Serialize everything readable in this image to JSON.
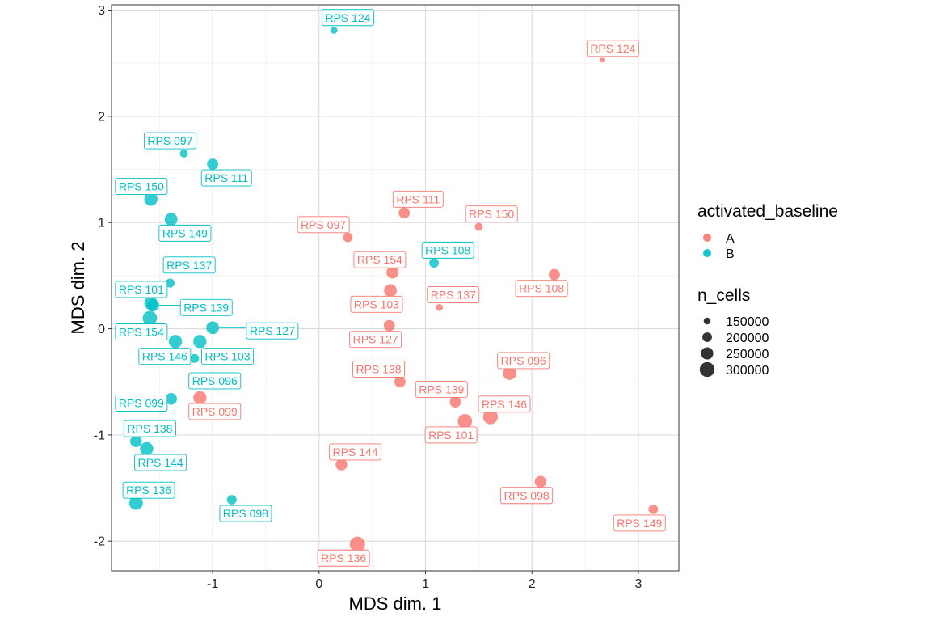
{
  "chart_data": {
    "type": "scatter",
    "title": "",
    "xlabel": "MDS dim. 1",
    "ylabel": "MDS dim. 2",
    "xlim": [
      -1.95,
      3.38
    ],
    "ylim": [
      -2.28,
      3.05
    ],
    "x_ticks": [
      -1,
      0,
      1,
      2,
      3
    ],
    "y_ticks": [
      -2,
      -1,
      0,
      1,
      2,
      3
    ],
    "grid": true,
    "color_legend": {
      "title": "activated_baseline",
      "entries": [
        {
          "label": "A",
          "color": "#F8766D"
        },
        {
          "label": "B",
          "color": "#00BFC4"
        }
      ]
    },
    "size_legend": {
      "title": "n_cells",
      "entries": [
        150000,
        200000,
        250000,
        300000
      ]
    },
    "size_range": [
      110000,
      310000
    ],
    "series": [
      {
        "name": "A",
        "color": "#F8766D",
        "points": [
          {
            "label": "RPS 124",
            "x": 2.66,
            "y": 2.53,
            "n_cells": 110000,
            "lx": 2.76,
            "ly": 2.64
          },
          {
            "label": "RPS 111",
            "x": 0.8,
            "y": 1.09,
            "n_cells": 230000,
            "lx": 0.93,
            "ly": 1.22
          },
          {
            "label": "RPS 097",
            "x": 0.27,
            "y": 0.86,
            "n_cells": 200000,
            "lx": 0.04,
            "ly": 0.98
          },
          {
            "label": "RPS 150",
            "x": 1.5,
            "y": 0.96,
            "n_cells": 170000,
            "lx": 1.62,
            "ly": 1.08
          },
          {
            "label": "RPS 154",
            "x": 0.69,
            "y": 0.53,
            "n_cells": 250000,
            "lx": 0.57,
            "ly": 0.65
          },
          {
            "label": "RPS 108",
            "x": 2.21,
            "y": 0.51,
            "n_cells": 230000,
            "lx": 2.09,
            "ly": 0.38
          },
          {
            "label": "RPS 103",
            "x": 0.67,
            "y": 0.36,
            "n_cells": 260000,
            "lx": 0.54,
            "ly": 0.23
          },
          {
            "label": "RPS 137",
            "x": 1.13,
            "y": 0.2,
            "n_cells": 150000,
            "lx": 1.26,
            "ly": 0.32
          },
          {
            "label": "RPS 127",
            "x": 0.66,
            "y": 0.03,
            "n_cells": 230000,
            "lx": 0.53,
            "ly": -0.1
          },
          {
            "label": "RPS 096",
            "x": 1.79,
            "y": -0.42,
            "n_cells": 270000,
            "lx": 1.92,
            "ly": -0.3
          },
          {
            "label": "RPS 138",
            "x": 0.76,
            "y": -0.5,
            "n_cells": 230000,
            "lx": 0.56,
            "ly": -0.38
          },
          {
            "label": "RPS 139",
            "x": 1.28,
            "y": -0.69,
            "n_cells": 230000,
            "lx": 1.15,
            "ly": -0.57
          },
          {
            "label": "RPS 146",
            "x": 1.61,
            "y": -0.83,
            "n_cells": 300000,
            "lx": 1.74,
            "ly": -0.71
          },
          {
            "label": "RPS 101",
            "x": 1.37,
            "y": -0.87,
            "n_cells": 290000,
            "lx": 1.24,
            "ly": -1.0
          },
          {
            "label": "RPS 099",
            "x": -1.12,
            "y": -0.65,
            "n_cells": 270000,
            "lx": -0.98,
            "ly": -0.78
          },
          {
            "label": "RPS 144",
            "x": 0.21,
            "y": -1.28,
            "n_cells": 240000,
            "lx": 0.34,
            "ly": -1.16
          },
          {
            "label": "RPS 098",
            "x": 2.08,
            "y": -1.44,
            "n_cells": 240000,
            "lx": 1.95,
            "ly": -1.57
          },
          {
            "label": "RPS 149",
            "x": 3.14,
            "y": -1.7,
            "n_cells": 200000,
            "lx": 3.01,
            "ly": -1.83
          },
          {
            "label": "RPS 136",
            "x": 0.36,
            "y": -2.03,
            "n_cells": 310000,
            "lx": 0.23,
            "ly": -2.16
          }
        ]
      },
      {
        "name": "B",
        "color": "#00BFC4",
        "points": [
          {
            "label": "RPS 124",
            "x": 0.14,
            "y": 2.81,
            "n_cells": 150000,
            "lx": 0.27,
            "ly": 2.93
          },
          {
            "label": "RPS 097",
            "x": -1.27,
            "y": 1.65,
            "n_cells": 170000,
            "lx": -1.4,
            "ly": 1.77
          },
          {
            "label": "RPS 111",
            "x": -1.0,
            "y": 1.55,
            "n_cells": 230000,
            "lx": -0.87,
            "ly": 1.42
          },
          {
            "label": "RPS 150",
            "x": -1.58,
            "y": 1.22,
            "n_cells": 270000,
            "lx": -1.67,
            "ly": 1.34
          },
          {
            "label": "RPS 149",
            "x": -1.39,
            "y": 1.03,
            "n_cells": 260000,
            "lx": -1.26,
            "ly": 0.9
          },
          {
            "label": "RPS 108",
            "x": 1.08,
            "y": 0.62,
            "n_cells": 200000,
            "lx": 1.21,
            "ly": 0.74
          },
          {
            "label": "RPS 137",
            "x": -1.4,
            "y": 0.43,
            "n_cells": 190000,
            "lx": -1.22,
            "ly": 0.6
          },
          {
            "label": "RPS 101",
            "x": -1.58,
            "y": 0.24,
            "n_cells": 270000,
            "lx": -1.67,
            "ly": 0.37
          },
          {
            "label": "RPS 139",
            "x": -1.56,
            "y": 0.22,
            "n_cells": 250000,
            "lx": -1.06,
            "ly": 0.2
          },
          {
            "label": "RPS 154",
            "x": -1.59,
            "y": 0.1,
            "n_cells": 290000,
            "lx": -1.67,
            "ly": -0.03
          },
          {
            "label": "RPS 127",
            "x": -1.0,
            "y": 0.01,
            "n_cells": 260000,
            "lx": -0.44,
            "ly": -0.02
          },
          {
            "label": "RPS 146",
            "x": -1.35,
            "y": -0.12,
            "n_cells": 270000,
            "lx": -1.45,
            "ly": -0.26
          },
          {
            "label": "RPS 103",
            "x": -1.12,
            "y": -0.12,
            "n_cells": 270000,
            "lx": -0.86,
            "ly": -0.26
          },
          {
            "label": "RPS 096",
            "x": -1.17,
            "y": -0.28,
            "n_cells": 190000,
            "lx": -0.98,
            "ly": -0.49
          },
          {
            "label": "RPS 099",
            "x": -1.39,
            "y": -0.66,
            "n_cells": 240000,
            "lx": -1.67,
            "ly": -0.7
          },
          {
            "label": "RPS 138",
            "x": -1.72,
            "y": -1.06,
            "n_cells": 240000,
            "lx": -1.59,
            "ly": -0.94
          },
          {
            "label": "RPS 144",
            "x": -1.62,
            "y": -1.13,
            "n_cells": 270000,
            "lx": -1.49,
            "ly": -1.26
          },
          {
            "label": "RPS 136",
            "x": -1.72,
            "y": -1.64,
            "n_cells": 280000,
            "lx": -1.6,
            "ly": -1.52
          },
          {
            "label": "RPS 098",
            "x": -0.82,
            "y": -1.61,
            "n_cells": 200000,
            "lx": -0.69,
            "ly": -1.74
          }
        ]
      }
    ]
  }
}
